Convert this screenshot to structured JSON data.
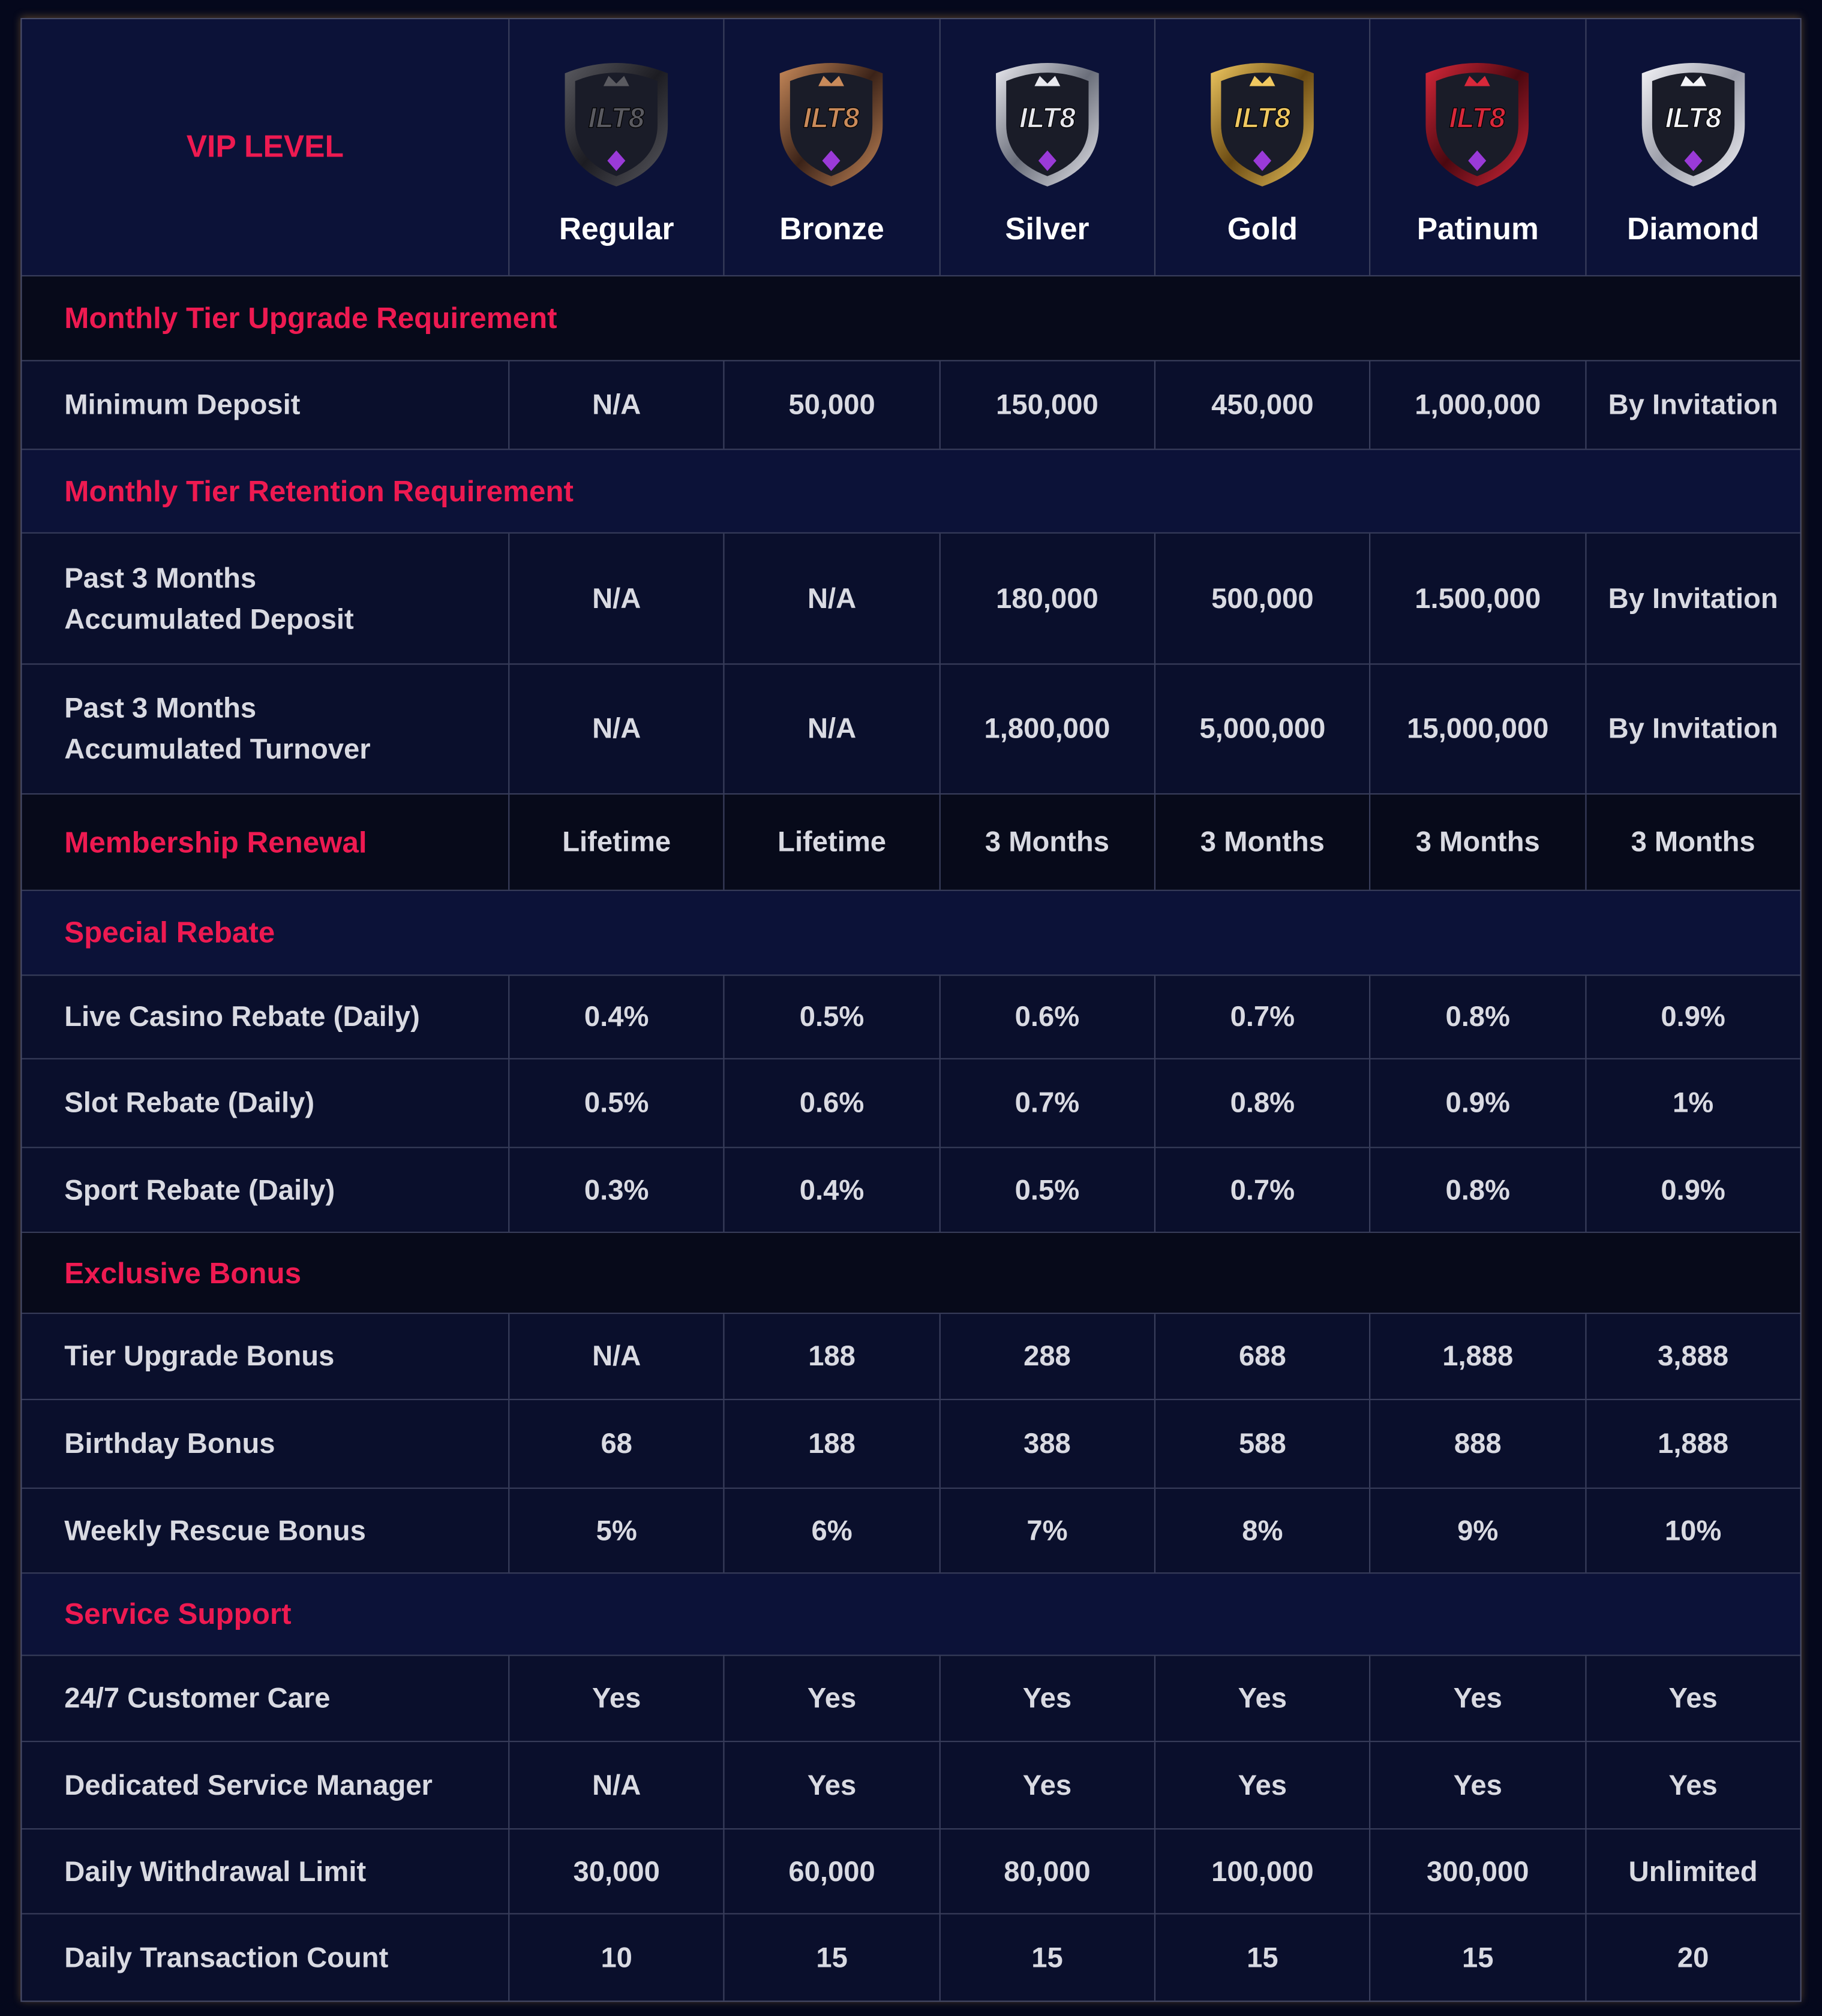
{
  "header": {
    "title": "VIP LEVEL",
    "logo": "ILT8",
    "tiers": [
      "Regular",
      "Bronze",
      "Silver",
      "Gold",
      "Patinum",
      "Diamond"
    ]
  },
  "rows": [
    {
      "section": "Monthly Tier Upgrade Requirement"
    },
    {
      "label": "Minimum Deposit",
      "values": [
        "N/A",
        "50,000",
        "150,000",
        "450,000",
        "1,000,000",
        "By Invitation"
      ]
    },
    {
      "section": "Monthly Tier Retention Requirement"
    },
    {
      "label": "Past 3 Months\nAccumulated Deposit",
      "values": [
        "N/A",
        "N/A",
        "180,000",
        "500,000",
        "1.500,000",
        "By Invitation"
      ]
    },
    {
      "label": "Past 3 Months\nAccumulated Turnover",
      "values": [
        "N/A",
        "N/A",
        "1,800,000",
        "5,000,000",
        "15,000,000",
        "By Invitation"
      ]
    },
    {
      "heading": "Membership Renewal",
      "values": [
        "Lifetime",
        "Lifetime",
        "3 Months",
        "3 Months",
        "3 Months",
        "3 Months"
      ]
    },
    {
      "section": "Special Rebate"
    },
    {
      "label": "Live Casino Rebate (Daily)",
      "values": [
        "0.4%",
        "0.5%",
        "0.6%",
        "0.7%",
        "0.8%",
        "0.9%"
      ]
    },
    {
      "label": "Slot Rebate (Daily)",
      "values": [
        "0.5%",
        "0.6%",
        "0.7%",
        "0.8%",
        "0.9%",
        "1%"
      ]
    },
    {
      "label": "Sport Rebate (Daily)",
      "values": [
        "0.3%",
        "0.4%",
        "0.5%",
        "0.7%",
        "0.8%",
        "0.9%"
      ]
    },
    {
      "section": "Exclusive Bonus"
    },
    {
      "label": "Tier Upgrade Bonus",
      "values": [
        "N/A",
        "188",
        "288",
        "688",
        "1,888",
        "3,888"
      ]
    },
    {
      "label": "Birthday Bonus",
      "values": [
        "68",
        "188",
        "388",
        "588",
        "888",
        "1,888"
      ]
    },
    {
      "label": "Weekly Rescue Bonus",
      "values": [
        "5%",
        "6%",
        "7%",
        "8%",
        "9%",
        "10%"
      ]
    },
    {
      "section": "Service Support"
    },
    {
      "label": "24/7 Customer Care",
      "values": [
        "Yes",
        "Yes",
        "Yes",
        "Yes",
        "Yes",
        "Yes"
      ]
    },
    {
      "label": "Dedicated Service Manager",
      "values": [
        "N/A",
        "Yes",
        "Yes",
        "Yes",
        "Yes",
        "Yes"
      ]
    },
    {
      "label": "Daily  Withdrawal Limit",
      "values": [
        "30,000",
        "60,000",
        "80,000",
        "100,000",
        "300,000",
        "Unlimited"
      ]
    },
    {
      "label": "Daily Transaction Count",
      "values": [
        "10",
        "15",
        "15",
        "15",
        "15",
        "20"
      ]
    }
  ]
}
